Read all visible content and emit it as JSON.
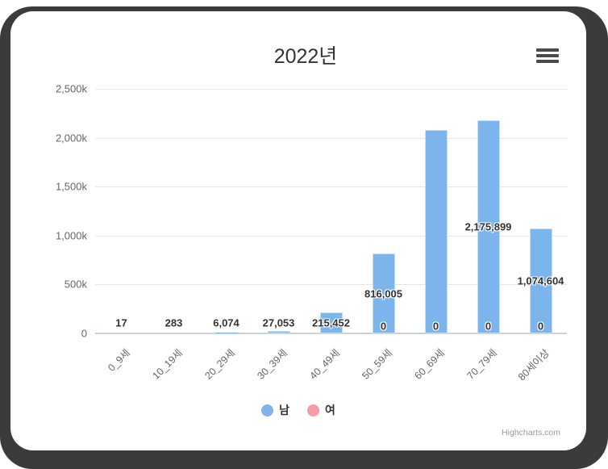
{
  "window": {
    "frame_color": "#3b3b3b",
    "card_color": "#ffffff"
  },
  "header": {
    "title": "2022년",
    "menu_icon": "hamburger-icon"
  },
  "legend": {
    "items": [
      {
        "label": "남",
        "color": "#7cb5ec"
      },
      {
        "label": "여",
        "color": "#f49ba3"
      }
    ]
  },
  "credits": {
    "text": "Highcharts.com"
  },
  "chart_data": {
    "type": "bar",
    "title": "2022년",
    "categories": [
      "0_9세",
      "10_19세",
      "20_29세",
      "30_39세",
      "40_49세",
      "50_59세",
      "60_69세",
      "70_79세",
      "80세이상"
    ],
    "series": [
      {
        "name": "남",
        "color": "#7cb5ec",
        "values": [
          17,
          283,
          6074,
          27053,
          215452,
          816005,
          2080000,
          2175899,
          1074604
        ],
        "data_labels": [
          "17",
          "283",
          "6,074",
          "27,053",
          "215,452",
          "816,005",
          null,
          "2,175,899",
          "1,074,604"
        ],
        "estimated_indices": [
          6
        ]
      },
      {
        "name": "여",
        "color": "#f49ba3",
        "values": [
          0,
          0,
          0,
          0,
          0,
          0,
          0,
          0,
          0
        ],
        "data_labels": [
          null,
          null,
          null,
          null,
          null,
          "0",
          "0",
          "0",
          "0"
        ]
      }
    ],
    "xlabel": "",
    "ylabel": "",
    "ylim": [
      0,
      2500000
    ],
    "yticks": [
      0,
      500000,
      1000000,
      1500000,
      2000000,
      2500000
    ],
    "ytick_labels": [
      "0",
      "500k",
      "1,000k",
      "1,500k",
      "2,000k",
      "2,500k"
    ],
    "grid": true,
    "legend_position": "bottom"
  }
}
